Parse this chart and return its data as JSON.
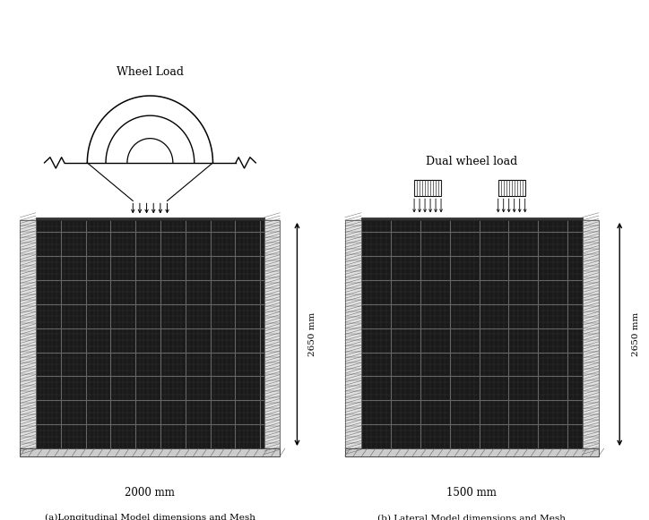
{
  "bg_color": "#ffffff",
  "fig_width": 7.24,
  "fig_height": 5.81,
  "left_panel": {
    "title": "Wheel Load",
    "label": "(a)Longitudinal Model dimensions and Mesh",
    "width_label": "2000 mm",
    "height_label": "2650 mm",
    "n_vert_lines": 55,
    "n_horiz_lines": 38,
    "n_vert_thick": 9,
    "n_horiz_thick": 8
  },
  "right_panel": {
    "title": "Dual wheel load",
    "label": "(b) Lateral Model dimensions and Mesh",
    "width_label": "1500 mm",
    "height_label": "2650 mm",
    "n_vert_lines": 45,
    "n_horiz_lines": 38,
    "n_vert_thick": 7,
    "n_horiz_thick": 8
  },
  "text_color": "#000000"
}
